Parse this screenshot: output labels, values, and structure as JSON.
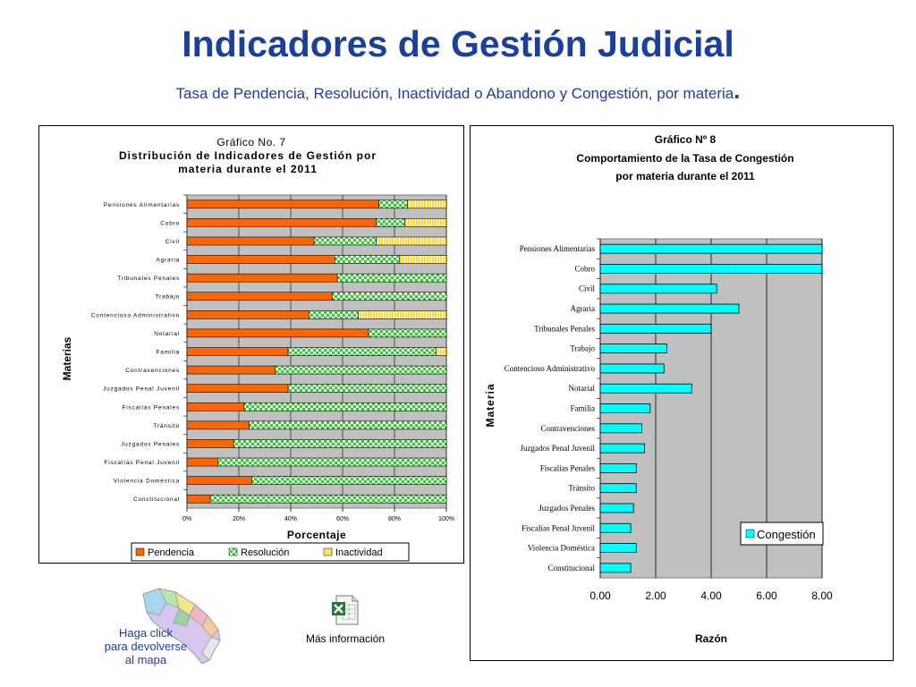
{
  "header": {
    "title": "Indicadores de Gestión Judicial",
    "subtitle": "Tasa de Pendencia, Resolución, Inactividad o Abandono y Congestión, por materia",
    "subtitle_dot": "."
  },
  "colors": {
    "pendencia": "#ff6600",
    "resolucion": "#33cc33",
    "inactividad": "#ffdd33",
    "congestion": "#00ffff",
    "plot_bg": "#c0c0c0",
    "title_blue": "#1a3f9c"
  },
  "chart_data": [
    {
      "type": "bar",
      "orientation": "horizontal",
      "stacked": true,
      "title": [
        "Gráfico No. 7",
        "Distribución de Indicadores de Gestión por",
        "materia durante el 2011"
      ],
      "xlabel": "Porcentaje",
      "ylabel": "Materias",
      "xlim": [
        0,
        100
      ],
      "xticks": [
        "0%",
        "20%",
        "40%",
        "60%",
        "80%",
        "100%"
      ],
      "categories": [
        "Pensiones Alimentarias",
        "Cobro",
        "Civil",
        "Agraria",
        "Tribunales Penales",
        "Trabajo",
        "Contencioso Administrativo",
        "Notarial",
        "Familia",
        "Contravenciones",
        "Juzgados Penal Juvenil",
        "Fiscalías Penales",
        "Tránsito",
        "Juzgados Penales",
        "Fiscalías Penal Juvenil",
        "Violencia Doméstica",
        "Constitucional"
      ],
      "series": [
        {
          "name": "Pendencia",
          "values": [
            74,
            73,
            49,
            57,
            58,
            56,
            47,
            70,
            39,
            34,
            39,
            22,
            24,
            18,
            12,
            25,
            9
          ]
        },
        {
          "name": "Resolución",
          "values": [
            11,
            11,
            24,
            25,
            42,
            44,
            19,
            30,
            57,
            66,
            61,
            78,
            76,
            82,
            88,
            75,
            91
          ]
        },
        {
          "name": "Inactividad",
          "values": [
            15,
            16,
            27,
            18,
            0,
            0,
            34,
            0,
            4,
            0,
            0,
            0,
            0,
            0,
            0,
            0,
            0
          ]
        }
      ],
      "legend": "bottom"
    },
    {
      "type": "bar",
      "orientation": "horizontal",
      "title": [
        "Gráfico Nº 8",
        "Comportamiento de la Tasa de Congestión",
        "por materia durante el 2011"
      ],
      "xlabel": "Razón",
      "ylabel": "Materia",
      "xlim": [
        0,
        8
      ],
      "xticks": [
        "0.00",
        "2.00",
        "4.00",
        "6.00",
        "8.00"
      ],
      "categories": [
        "Pensiones Alimentarias",
        "Cobro",
        "Civil",
        "Agraria",
        "Tribunales Penales",
        "Trabajo",
        "Contencioso Administrativo",
        "Notarial",
        "Familia",
        "Contravenciones",
        "Juzgados Penal Juvenil",
        "Fiscalías Penales",
        "Tránsito",
        "Juzgados Penales",
        "Fiscalías Penal Juvenil",
        "Violencia Doméstica",
        "Constitucional"
      ],
      "series": [
        {
          "name": "Congestión",
          "values": [
            8.1,
            8.1,
            4.2,
            5.0,
            4.0,
            2.4,
            2.3,
            3.3,
            1.8,
            1.5,
            1.6,
            1.3,
            1.3,
            1.2,
            1.1,
            1.3,
            1.1
          ]
        }
      ],
      "legend": "inside-right"
    }
  ],
  "footer": {
    "map_link": [
      "Haga click",
      "para devolverse",
      "al mapa"
    ],
    "more_info": "Más información"
  }
}
